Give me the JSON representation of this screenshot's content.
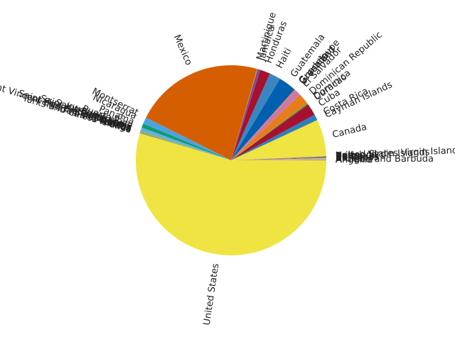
{
  "chart_data": {
    "type": "pie",
    "title": "",
    "start_angle_deg": 0,
    "direction": "counterclockwise",
    "slices": [
      {
        "label": "Anguilla",
        "value": 0.05,
        "color": "#2b6fb5"
      },
      {
        "label": "Antigua and Barbuda",
        "value": 0.1,
        "color": "#c06faa"
      },
      {
        "label": "Aruba",
        "value": 0.1,
        "color": "#a6d6ef"
      },
      {
        "label": "Bahamas",
        "value": 0.1,
        "color": "#e3bb2a"
      },
      {
        "label": "Barbados",
        "value": 0.1,
        "color": "#d85a00"
      },
      {
        "label": "Belize",
        "value": 0.1,
        "color": "#1f9a75"
      },
      {
        "label": "Bermuda",
        "value": 0.05,
        "color": "#e03a2d"
      },
      {
        "label": "British Virgin Islands",
        "value": 0.05,
        "color": "#6a3d9a"
      },
      {
        "label": "United States Virgin Islands",
        "value": 0.05,
        "color": "#9b7aa8"
      },
      {
        "label": "Canada",
        "value": 6.3,
        "color": "#f0e442"
      },
      {
        "label": "Cayman Islands",
        "value": 0.1,
        "color": "#0f5d8f"
      },
      {
        "label": "Costa Rica",
        "value": 0.9,
        "color": "#2b7fc0"
      },
      {
        "label": "Cuba",
        "value": 2.0,
        "color": "#a8102f"
      },
      {
        "label": "Curacao",
        "value": 0.2,
        "color": "#2e8a3a"
      },
      {
        "label": "Dominica",
        "value": 0.05,
        "color": "#7fbf3f"
      },
      {
        "label": "Dominican Republic",
        "value": 1.9,
        "color": "#e87c1a"
      },
      {
        "label": "El Salvador",
        "value": 1.1,
        "color": "#cc79a7"
      },
      {
        "label": "Greenland",
        "value": 0.05,
        "color": "#56b4e9"
      },
      {
        "label": "Grenada",
        "value": 0.05,
        "color": "#b07a1a"
      },
      {
        "label": "Guadeloupe",
        "value": 0.1,
        "color": "#c0392b"
      },
      {
        "label": "Guatemala",
        "value": 3.0,
        "color": "#0060b0"
      },
      {
        "label": "Haiti",
        "value": 1.9,
        "color": "#3a86c0"
      },
      {
        "label": "Honduras",
        "value": 1.7,
        "color": "#a8102f"
      },
      {
        "label": "Jamaica",
        "value": 0.5,
        "color": "#7a4f9a"
      },
      {
        "label": "Martinique",
        "value": 0.1,
        "color": "#ee9a1a"
      },
      {
        "label": "Mexico",
        "value": 22.0,
        "color": "#d55e00"
      },
      {
        "label": "Montserrat",
        "value": 0.05,
        "color": "#7a5aa8"
      },
      {
        "label": "Nicaragua",
        "value": 1.1,
        "color": "#4aa3df"
      },
      {
        "label": "Panama",
        "value": 0.7,
        "color": "#0f9a72"
      },
      {
        "label": "Puerto Rico",
        "value": 0.5,
        "color": "#56b4e9"
      },
      {
        "label": "Saint Barthelemy",
        "value": 0.05,
        "color": "#e69f00"
      },
      {
        "label": "Saint Kitts and Nevis",
        "value": 0.05,
        "color": "#009e73"
      },
      {
        "label": "Saint Lucia",
        "value": 0.05,
        "color": "#cc79a7"
      },
      {
        "label": "Saint Martin",
        "value": 0.05,
        "color": "#0072b2"
      },
      {
        "label": "Saint Pierre and Miquelon",
        "value": 0.05,
        "color": "#d55e00"
      },
      {
        "label": "Saint Vincent and the Grenadines",
        "value": 0.05,
        "color": "#f0e442"
      },
      {
        "label": "Sint Maarten",
        "value": 0.05,
        "color": "#999999"
      },
      {
        "label": "Trinidad and Tobago",
        "value": 0.1,
        "color": "#009e73"
      },
      {
        "label": "Turks and Caicos Islands",
        "value": 0.05,
        "color": "#e69f00"
      },
      {
        "label": "United States",
        "value": 54.7,
        "color": "#f0e442"
      }
    ]
  }
}
